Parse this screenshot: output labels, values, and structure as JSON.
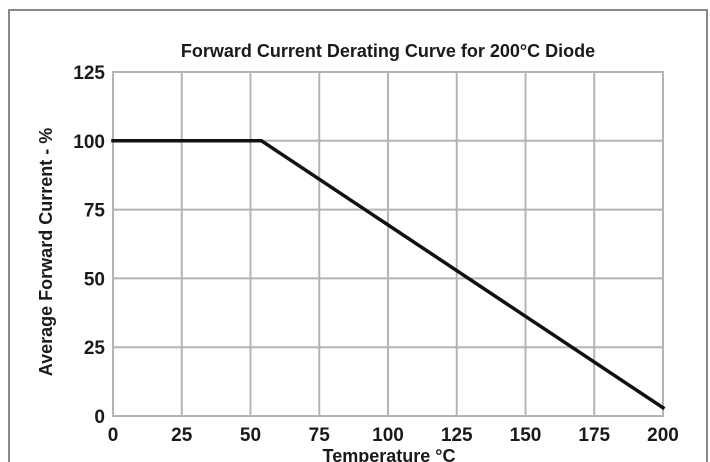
{
  "chart_data": {
    "type": "line",
    "title": "Forward Current Derating Curve for 200°C Diode",
    "xlabel": "Temperature °C",
    "ylabel": "Average Forward Current - %",
    "xlim": [
      0,
      200
    ],
    "ylim": [
      0,
      125
    ],
    "x_ticks": [
      "0",
      "25",
      "50",
      "75",
      "100",
      "125",
      "150",
      "175",
      "200"
    ],
    "y_ticks": [
      "0",
      "25",
      "50",
      "75",
      "100",
      "125"
    ],
    "grid": true,
    "series": [
      {
        "x": [
          0,
          54,
          200
        ],
        "y": [
          100,
          100,
          3
        ]
      }
    ],
    "colors": {
      "line": "#111111",
      "grid": "#b4b4b4",
      "frame": "#8a8a8a"
    }
  }
}
